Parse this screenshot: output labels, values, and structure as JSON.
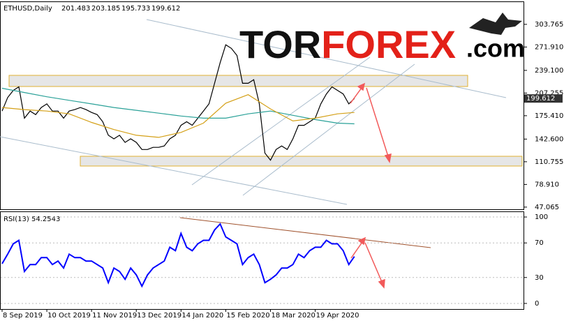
{
  "logo": {
    "part1": "TOR",
    "part2": "FOREX",
    "part3": ".com"
  },
  "chart_data": [
    {
      "type": "line",
      "symbol": "ETHUSD,Daily",
      "ohlc": [
        201.483,
        203.185,
        195.733,
        199.612
      ],
      "last_price": 199.612,
      "xlim": [
        0,
        93
      ],
      "ylim": [
        44,
        335
      ],
      "yticks": [
        303.765,
        {
          "value": 271.91,
          "label": "271.910"
        },
        {
          "value": 239.1,
          "label": "239.100"
        },
        207.255,
        {
          "value": 175.41,
          "label": "175.410"
        },
        {
          "value": 142.6,
          "label": "142.600"
        },
        110.755,
        {
          "value": 78.91,
          "label": "78.910"
        },
        47.065
      ],
      "series": [
        {
          "color": "#000000",
          "values": [
            182,
            201,
            211,
            216,
            172,
            182,
            177,
            187,
            192,
            182,
            182,
            172,
            182,
            184,
            187,
            184,
            180,
            177,
            167,
            148,
            143,
            148,
            138,
            143,
            138,
            128,
            128,
            131,
            131,
            133,
            143,
            148,
            162,
            167,
            162,
            172,
            182,
            192,
            221,
            250,
            275,
            270,
            260,
            221,
            221,
            226,
            192,
            123,
            113,
            128,
            133,
            128,
            143,
            162,
            162,
            167,
            172,
            192,
            206,
            216,
            211,
            206,
            192,
            199.612
          ]
        },
        {
          "color": "#2aa198",
          "x": [
            0,
            4,
            8,
            12,
            16,
            20,
            24,
            28,
            32,
            36,
            40,
            44,
            48,
            52,
            56,
            60,
            63
          ],
          "values": [
            214,
            208,
            202,
            197,
            192,
            187,
            183,
            179,
            175,
            172,
            172,
            178,
            182,
            176,
            170,
            165,
            164
          ]
        },
        {
          "color": "#d4a017",
          "x": [
            0,
            4,
            8,
            12,
            16,
            20,
            24,
            28,
            32,
            36,
            40,
            44,
            48,
            52,
            56,
            60,
            63
          ],
          "values": [
            187,
            184,
            182,
            178,
            166,
            156,
            148,
            145,
            152,
            165,
            193,
            205,
            185,
            168,
            172,
            178,
            180
          ]
        }
      ]
    },
    {
      "type": "line",
      "title": "RSI(13) 54.2543",
      "xlim": [
        0,
        93
      ],
      "ylim": [
        -6.5,
        105.7
      ],
      "yticks": [
        100,
        70,
        30,
        0
      ],
      "grid": true,
      "xticks": [
        {
          "value": 0,
          "label": "8 Sep 2019"
        },
        {
          "value": 8,
          "label": "10 Oct 2019"
        },
        {
          "value": 16,
          "label": "11 Nov 2019"
        },
        {
          "value": 24,
          "label": "13 Dec 2019"
        },
        {
          "value": 32,
          "label": "14 Jan 2020"
        },
        {
          "value": 40,
          "label": "15 Feb 2020"
        },
        {
          "value": 48,
          "label": "18 Mar 2020"
        },
        {
          "value": 56,
          "label": "19 Apr 2020"
        }
      ],
      "series": [
        {
          "color": "#0000ff",
          "values": [
            46,
            57,
            69,
            73,
            37,
            45,
            45,
            53,
            53,
            45,
            49,
            41,
            57,
            53,
            53,
            49,
            49,
            45,
            41,
            24,
            41,
            37,
            28,
            41,
            33,
            20,
            33,
            41,
            45,
            49,
            65,
            61,
            81,
            65,
            61,
            69,
            73,
            73,
            85,
            92,
            77,
            73,
            69,
            45,
            53,
            57,
            45,
            24,
            28,
            33,
            41,
            41,
            45,
            57,
            53,
            61,
            65,
            65,
            73,
            69,
            69,
            61,
            45,
            54.2543
          ]
        }
      ]
    }
  ]
}
